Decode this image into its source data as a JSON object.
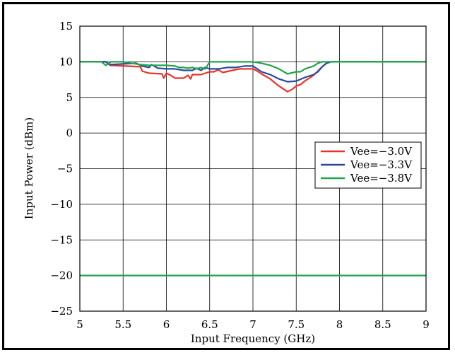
{
  "chart_data": {
    "type": "line",
    "title": "",
    "xlabel": "Input Frequency (GHz)",
    "ylabel": "Input Power (dBm)",
    "xlim": [
      5,
      9
    ],
    "ylim": [
      -25,
      15
    ],
    "xticks": [
      5,
      5.5,
      6,
      6.5,
      7,
      7.5,
      8,
      8.5,
      9
    ],
    "xtick_labels": [
      "5",
      "5.5",
      "6",
      "6.5",
      "7",
      "7.5",
      "8",
      "8.5",
      "9"
    ],
    "yticks": [
      -25,
      -20,
      -15,
      -10,
      -5,
      0,
      5,
      10,
      15
    ],
    "ytick_labels": [
      "−25",
      "−20",
      "−15",
      "−10",
      "−5",
      "0",
      "5",
      "10",
      "15"
    ],
    "grid": true,
    "legend_position": "right-middle",
    "series": [
      {
        "name": "Vee=−3.0V",
        "color": "#e8332a",
        "x": [
          5.0,
          5.3,
          5.35,
          5.7,
          5.72,
          5.8,
          5.95,
          5.97,
          6.0,
          6.05,
          6.1,
          6.2,
          6.25,
          6.28,
          6.3,
          6.4,
          6.5,
          6.55,
          6.6,
          6.65,
          6.8,
          6.85,
          7.0,
          7.05,
          7.1,
          7.2,
          7.25,
          7.3,
          7.35,
          7.4,
          7.45,
          7.5,
          7.55,
          7.6,
          7.65,
          7.7,
          7.75,
          7.8,
          7.85,
          7.9,
          8.0,
          9.0
        ],
        "y": [
          10.0,
          10.0,
          9.5,
          9.3,
          8.7,
          8.4,
          8.3,
          7.7,
          8.4,
          8.1,
          7.7,
          7.7,
          8.1,
          7.6,
          8.2,
          8.2,
          8.6,
          8.6,
          8.9,
          8.5,
          8.9,
          9.0,
          9.0,
          8.7,
          8.3,
          7.6,
          7.1,
          6.6,
          6.2,
          5.8,
          6.1,
          6.6,
          6.8,
          7.3,
          7.7,
          8.1,
          8.7,
          9.3,
          9.8,
          10.0,
          10.0,
          10.0
        ]
      },
      {
        "name": "Vee=−3.3V",
        "color": "#2a4a9c",
        "x": [
          5.0,
          5.3,
          5.35,
          5.65,
          5.72,
          5.8,
          5.83,
          5.9,
          6.0,
          6.1,
          6.2,
          6.3,
          6.35,
          6.4,
          6.45,
          6.5,
          6.6,
          6.7,
          6.8,
          6.9,
          7.0,
          7.05,
          7.1,
          7.2,
          7.3,
          7.4,
          7.5,
          7.6,
          7.7,
          7.75,
          7.8,
          7.85,
          7.9,
          8.0,
          9.0
        ],
        "y": [
          10.0,
          10.0,
          9.6,
          9.8,
          9.4,
          9.2,
          9.6,
          9.1,
          9.0,
          9.0,
          8.8,
          8.8,
          9.1,
          8.8,
          9.2,
          9.0,
          9.0,
          9.2,
          9.2,
          9.4,
          9.4,
          9.0,
          8.6,
          8.2,
          7.6,
          7.2,
          7.3,
          7.8,
          8.2,
          8.6,
          9.3,
          9.8,
          10.0,
          10.0,
          10.0
        ]
      },
      {
        "name": "Vee=−3.8V",
        "color": "#1fa64b",
        "x": [
          5.0,
          5.25,
          5.3,
          5.33,
          5.36,
          5.5,
          5.7,
          5.8,
          5.9,
          6.0,
          6.1,
          6.15,
          6.2,
          6.25,
          6.3,
          6.35,
          6.4,
          6.45,
          6.48,
          6.5,
          6.6,
          7.0,
          7.1,
          7.2,
          7.3,
          7.4,
          7.5,
          7.55,
          7.6,
          7.7,
          7.75,
          7.8,
          9.0
        ],
        "y": [
          10.0,
          10.0,
          9.5,
          9.7,
          10.0,
          10.0,
          9.6,
          9.5,
          9.5,
          9.5,
          9.4,
          9.2,
          9.2,
          9.1,
          9.2,
          9.0,
          9.2,
          9.0,
          9.6,
          10.0,
          10.0,
          10.0,
          9.8,
          9.5,
          9.0,
          8.3,
          8.6,
          8.6,
          9.0,
          9.4,
          9.8,
          10.0,
          10.0
        ]
      },
      {
        "name": "",
        "color": "#1fa64b",
        "x": [
          5.0,
          9.0
        ],
        "y": [
          -20.0,
          -20.0
        ]
      }
    ]
  }
}
